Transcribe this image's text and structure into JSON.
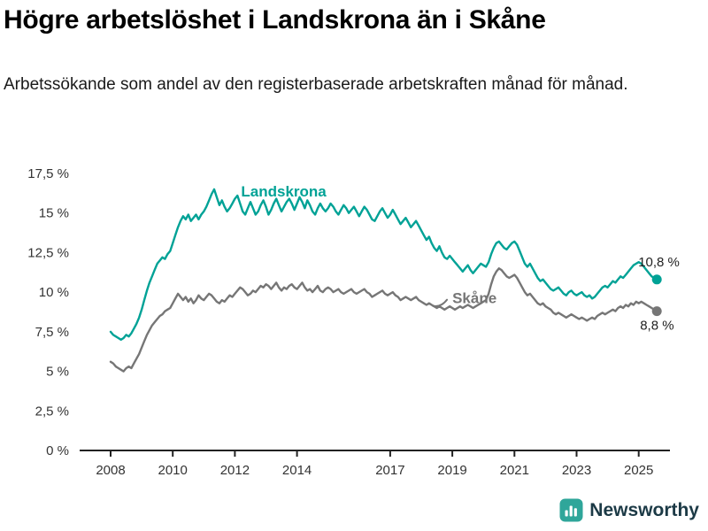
{
  "title": "Högre arbetslöshet i Landskrona än i Skåne",
  "subtitle": "Arbetssökande som andel av den registerbaserade arbetskraften månad för månad.",
  "footer": {
    "brand": "Newsworthy"
  },
  "colors": {
    "landskrona": "#00a296",
    "skane": "#767676",
    "axis": "#222222",
    "tick_text": "#333333",
    "logo": "#2fa69a",
    "brand_text": "#1c3a46"
  },
  "chart_data": {
    "type": "line",
    "title": "Högre arbetslöshet i Landskrona än i Skåne",
    "subtitle": "Arbetssökande som andel av den registerbaserade arbetskraften månad för månad.",
    "x_start_year": 2008,
    "x_interval_months": 1,
    "ylim": [
      0,
      17.5
    ],
    "grid": false,
    "legend": "inline-labels",
    "y_ticks": [
      {
        "label": "0 %",
        "value": 0
      },
      {
        "label": "2,5 %",
        "value": 2.5
      },
      {
        "label": "5 %",
        "value": 5
      },
      {
        "label": "7,5 %",
        "value": 7.5
      },
      {
        "label": "10 %",
        "value": 10
      },
      {
        "label": "12,5 %",
        "value": 12.5
      },
      {
        "label": "15 %",
        "value": 15
      },
      {
        "label": "17,5 %",
        "value": 17.5
      }
    ],
    "x_ticks": [
      {
        "label": "2008",
        "year": 2008
      },
      {
        "label": "2010",
        "year": 2010
      },
      {
        "label": "2012",
        "year": 2012
      },
      {
        "label": "2014",
        "year": 2014
      },
      {
        "label": "2017",
        "year": 2017
      },
      {
        "label": "2019",
        "year": 2019
      },
      {
        "label": "2021",
        "year": 2021
      },
      {
        "label": "2023",
        "year": 2023
      },
      {
        "label": "2025",
        "year": 2025
      }
    ],
    "series": [
      {
        "name": "Landskrona",
        "color": "#00a296",
        "end_label": "10,8 %",
        "end_value": 10.8,
        "label_pos": {
          "year": 2012.2,
          "value": 16.05
        },
        "end_label_offset": [
          -21,
          -15
        ],
        "pointer": false,
        "values": [
          7.5,
          7.3,
          7.2,
          7.1,
          7.0,
          7.1,
          7.3,
          7.2,
          7.4,
          7.7,
          8.0,
          8.4,
          8.9,
          9.5,
          10.1,
          10.6,
          11.0,
          11.4,
          11.8,
          12.0,
          12.2,
          12.1,
          12.4,
          12.6,
          13.1,
          13.6,
          14.1,
          14.5,
          14.8,
          14.6,
          14.9,
          14.5,
          14.7,
          14.9,
          14.6,
          14.9,
          15.1,
          15.4,
          15.8,
          16.2,
          16.5,
          16.0,
          15.5,
          15.8,
          15.4,
          15.1,
          15.3,
          15.6,
          15.9,
          16.1,
          15.6,
          15.1,
          14.9,
          15.3,
          15.7,
          15.3,
          14.9,
          15.1,
          15.5,
          15.8,
          15.4,
          14.9,
          15.2,
          15.6,
          15.9,
          15.5,
          15.1,
          15.4,
          15.7,
          15.9,
          15.6,
          15.2,
          15.6,
          16.0,
          15.7,
          15.3,
          15.8,
          15.5,
          15.1,
          14.9,
          15.3,
          15.6,
          15.3,
          15.1,
          15.3,
          15.6,
          15.4,
          15.1,
          14.9,
          15.2,
          15.5,
          15.3,
          15.0,
          15.2,
          15.4,
          15.1,
          14.8,
          15.1,
          15.4,
          15.2,
          14.9,
          14.6,
          14.5,
          14.8,
          15.1,
          15.3,
          15.0,
          14.7,
          14.9,
          15.2,
          14.9,
          14.6,
          14.3,
          14.5,
          14.7,
          14.4,
          14.1,
          14.3,
          14.5,
          14.2,
          13.9,
          13.6,
          13.3,
          13.5,
          13.1,
          12.8,
          12.6,
          12.9,
          12.5,
          12.2,
          12.1,
          12.3,
          12.1,
          11.9,
          11.7,
          11.5,
          11.3,
          11.5,
          11.7,
          11.4,
          11.2,
          11.4,
          11.6,
          11.8,
          11.7,
          11.6,
          11.9,
          12.4,
          12.8,
          13.1,
          13.2,
          13.0,
          12.8,
          12.7,
          12.9,
          13.1,
          13.2,
          13.0,
          12.6,
          12.2,
          11.8,
          11.6,
          11.8,
          11.5,
          11.2,
          10.9,
          10.7,
          10.8,
          10.6,
          10.4,
          10.2,
          10.1,
          10.2,
          10.3,
          10.1,
          9.9,
          9.8,
          10.0,
          10.1,
          9.9,
          9.8,
          9.9,
          10.0,
          9.8,
          9.7,
          9.8,
          9.6,
          9.7,
          9.9,
          10.1,
          10.3,
          10.4,
          10.3,
          10.5,
          10.7,
          10.6,
          10.8,
          11.0,
          10.9,
          11.1,
          11.3,
          11.5,
          11.7,
          11.8,
          11.9,
          11.8,
          11.6,
          11.4,
          11.2,
          11.0,
          10.9,
          10.8
        ]
      },
      {
        "name": "Skåne",
        "color": "#767676",
        "end_label": "8,8 %",
        "end_value": 8.8,
        "label_pos": {
          "year": 2019.0,
          "value": 9.3
        },
        "end_label_offset": [
          -19,
          21
        ],
        "pointer": true,
        "values": [
          5.6,
          5.5,
          5.3,
          5.2,
          5.1,
          5.0,
          5.2,
          5.3,
          5.2,
          5.5,
          5.8,
          6.1,
          6.5,
          6.9,
          7.3,
          7.6,
          7.9,
          8.1,
          8.3,
          8.5,
          8.6,
          8.8,
          8.9,
          9.0,
          9.3,
          9.6,
          9.9,
          9.7,
          9.5,
          9.7,
          9.4,
          9.6,
          9.3,
          9.5,
          9.8,
          9.6,
          9.5,
          9.7,
          9.9,
          9.8,
          9.6,
          9.4,
          9.3,
          9.5,
          9.4,
          9.6,
          9.8,
          9.7,
          9.9,
          10.1,
          10.3,
          10.2,
          10.0,
          9.8,
          9.9,
          10.1,
          10.0,
          10.2,
          10.4,
          10.3,
          10.5,
          10.4,
          10.2,
          10.4,
          10.6,
          10.3,
          10.1,
          10.3,
          10.2,
          10.4,
          10.5,
          10.3,
          10.2,
          10.4,
          10.6,
          10.3,
          10.1,
          10.2,
          10.0,
          10.2,
          10.4,
          10.1,
          10.0,
          10.2,
          10.3,
          10.2,
          10.0,
          10.1,
          10.2,
          10.0,
          9.9,
          10.0,
          10.1,
          10.2,
          10.0,
          9.9,
          10.0,
          10.1,
          10.2,
          10.0,
          9.9,
          9.7,
          9.8,
          9.9,
          10.0,
          10.1,
          9.9,
          9.8,
          9.9,
          10.0,
          9.8,
          9.7,
          9.5,
          9.6,
          9.7,
          9.6,
          9.5,
          9.6,
          9.7,
          9.5,
          9.4,
          9.3,
          9.2,
          9.3,
          9.2,
          9.1,
          9.0,
          9.1,
          9.0,
          8.9,
          9.0,
          9.1,
          9.0,
          8.9,
          9.0,
          9.1,
          9.0,
          9.1,
          9.2,
          9.1,
          9.0,
          9.1,
          9.2,
          9.3,
          9.4,
          9.5,
          9.9,
          10.5,
          11.0,
          11.3,
          11.5,
          11.4,
          11.2,
          11.0,
          10.9,
          11.0,
          11.1,
          10.9,
          10.6,
          10.3,
          10.0,
          9.8,
          9.9,
          9.7,
          9.5,
          9.3,
          9.2,
          9.3,
          9.1,
          9.0,
          8.9,
          8.7,
          8.6,
          8.7,
          8.6,
          8.5,
          8.4,
          8.5,
          8.6,
          8.5,
          8.4,
          8.3,
          8.4,
          8.3,
          8.2,
          8.3,
          8.4,
          8.3,
          8.5,
          8.6,
          8.7,
          8.6,
          8.7,
          8.8,
          8.9,
          8.8,
          9.0,
          9.1,
          9.0,
          9.2,
          9.1,
          9.3,
          9.2,
          9.4,
          9.3,
          9.4,
          9.3,
          9.2,
          9.1,
          9.0,
          8.9,
          8.8
        ]
      }
    ]
  }
}
